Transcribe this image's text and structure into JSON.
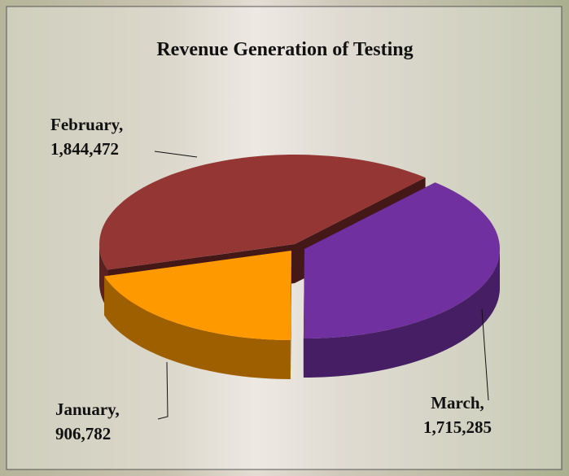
{
  "chart_data": {
    "type": "pie3d",
    "title": "Revenue Generation of Testing",
    "categories": [
      "January,",
      "February,",
      "March,"
    ],
    "values": [
      906782,
      1844472,
      1715285
    ],
    "value_labels": [
      "906,782",
      "1,844,472",
      "1,715,285"
    ],
    "colors": [
      "#ff9900",
      "#943634",
      "#7030a0"
    ]
  }
}
